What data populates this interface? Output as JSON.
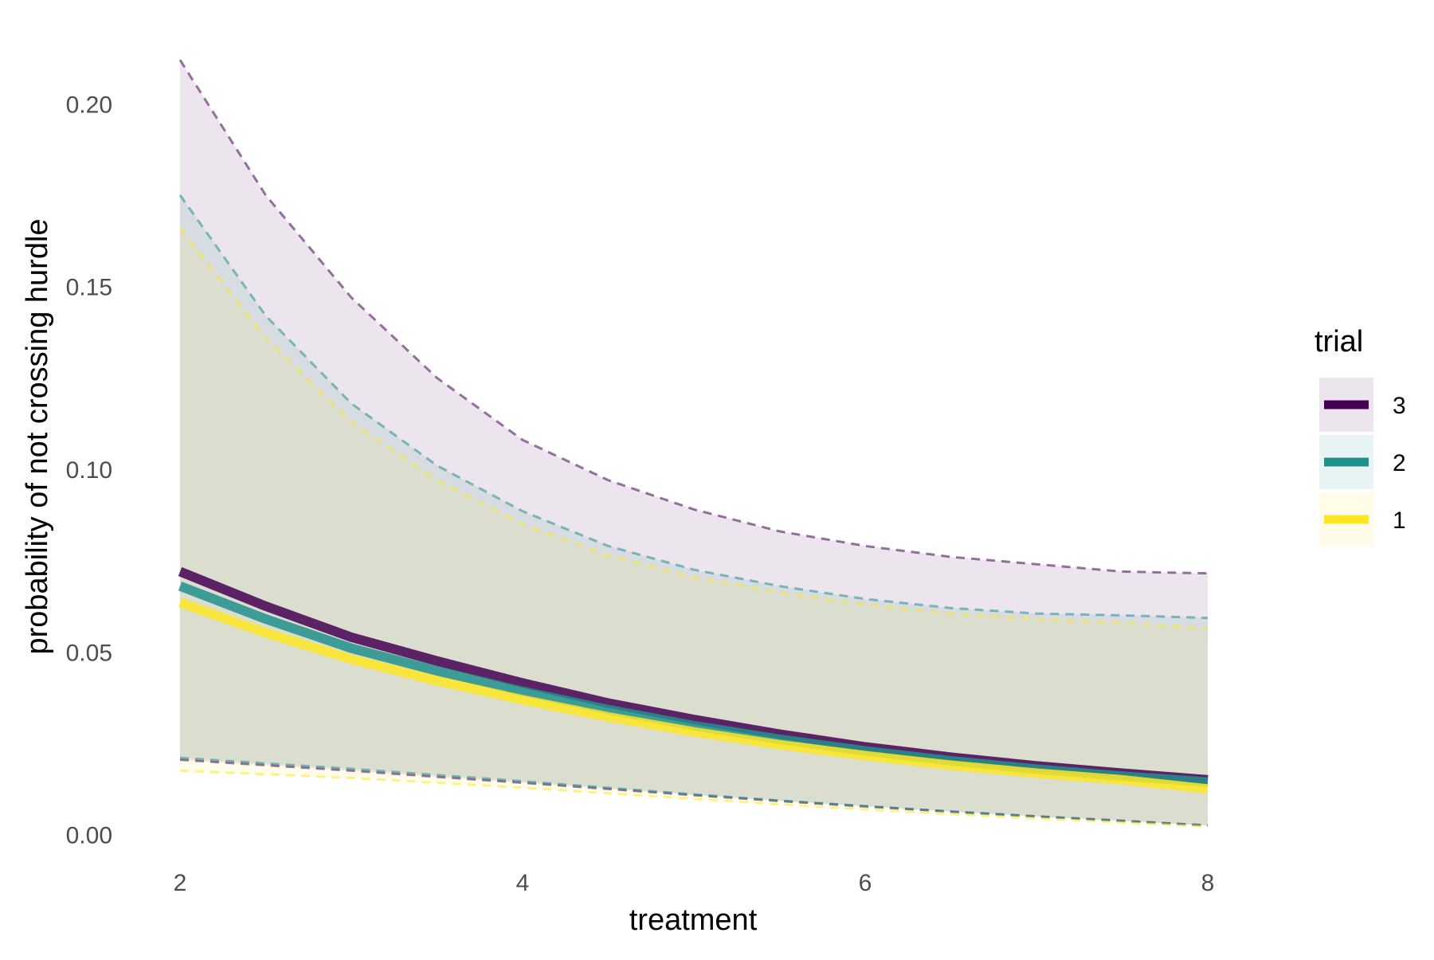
{
  "chart_data": {
    "type": "line",
    "title": "",
    "xlabel": "treatment",
    "ylabel": "probability of not crossing hurdle",
    "xlim": [
      2,
      8
    ],
    "ylim": [
      -0.0075,
      0.2175
    ],
    "x_ticks": [
      2,
      4,
      6,
      8
    ],
    "x_tick_labels": [
      "2",
      "4",
      "6",
      "8"
    ],
    "y_ticks": [
      0.0,
      0.05,
      0.1,
      0.15,
      0.2
    ],
    "y_tick_labels": [
      "0.00",
      "0.05",
      "0.10",
      "0.15",
      "0.20"
    ],
    "grid": false,
    "legend": {
      "title": "trial",
      "placement": "right"
    },
    "x": [
      2,
      2.5,
      3,
      3.5,
      4,
      4.5,
      5,
      5.5,
      6,
      6.5,
      7,
      7.5,
      8
    ],
    "series": [
      {
        "name": "3",
        "color": "#440154",
        "values": [
          0.072,
          0.0625,
          0.054,
          0.0475,
          0.0415,
          0.036,
          0.0315,
          0.0275,
          0.024,
          0.0212,
          0.0188,
          0.0168,
          0.015
        ],
        "lower": [
          0.0205,
          0.019,
          0.0175,
          0.0158,
          0.0142,
          0.0125,
          0.0108,
          0.0092,
          0.0077,
          0.0063,
          0.005,
          0.0038,
          0.0025
        ],
        "upper": [
          0.212,
          0.175,
          0.147,
          0.125,
          0.108,
          0.097,
          0.089,
          0.083,
          0.079,
          0.076,
          0.074,
          0.072,
          0.0715
        ]
      },
      {
        "name": "2",
        "color": "#21908C",
        "values": [
          0.068,
          0.059,
          0.051,
          0.0448,
          0.0392,
          0.0342,
          0.0298,
          0.0261,
          0.0229,
          0.0202,
          0.0179,
          0.016,
          0.0144
        ],
        "lower": [
          0.021,
          0.0195,
          0.018,
          0.0163,
          0.0146,
          0.0128,
          0.011,
          0.0093,
          0.0078,
          0.0063,
          0.005,
          0.0037,
          0.0025
        ],
        "upper": [
          0.175,
          0.142,
          0.118,
          0.101,
          0.0885,
          0.079,
          0.0725,
          0.068,
          0.0645,
          0.062,
          0.0605,
          0.06,
          0.0593
        ]
      },
      {
        "name": "1",
        "color": "#FDE725",
        "values": [
          0.0635,
          0.0552,
          0.048,
          0.0421,
          0.0369,
          0.0322,
          0.0281,
          0.0246,
          0.0216,
          0.019,
          0.0168,
          0.015,
          0.0125
        ],
        "lower": [
          0.0175,
          0.0165,
          0.0155,
          0.0142,
          0.0128,
          0.0113,
          0.0098,
          0.0083,
          0.0069,
          0.0056,
          0.0044,
          0.0033,
          0.0022
        ],
        "upper": [
          0.166,
          0.136,
          0.113,
          0.097,
          0.085,
          0.0765,
          0.0705,
          0.0662,
          0.063,
          0.0605,
          0.059,
          0.058,
          0.0565
        ]
      }
    ]
  }
}
